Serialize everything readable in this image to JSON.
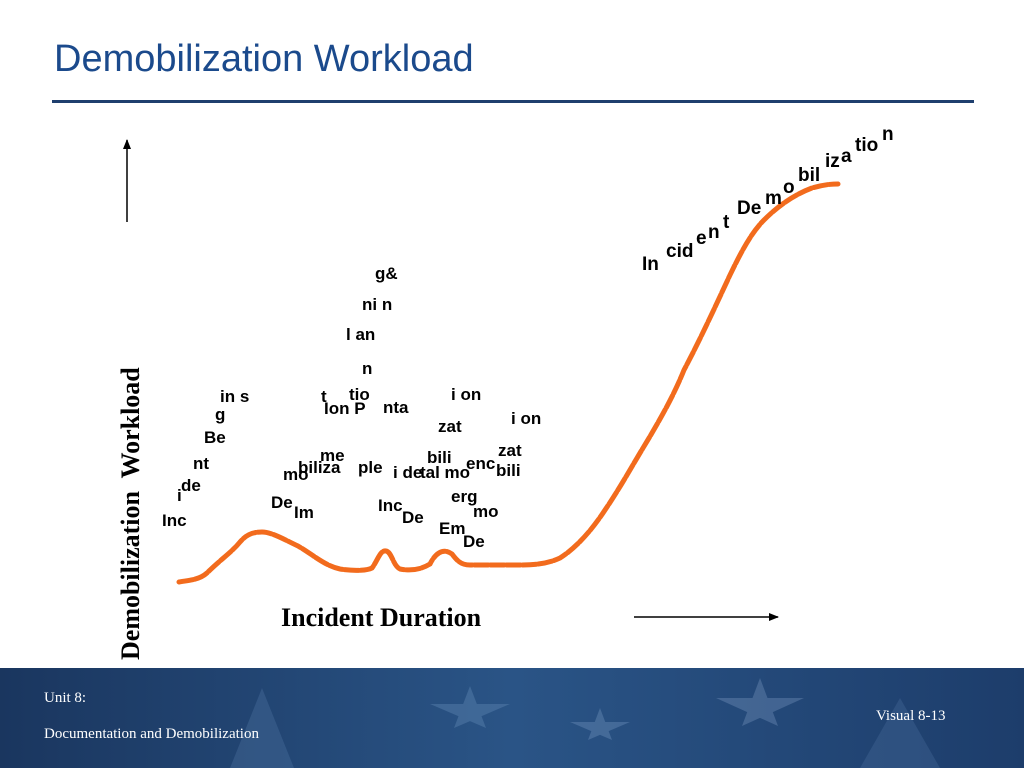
{
  "slide": {
    "title": "Demobilization Workload",
    "y_axis_label": "Demobilization  Workload",
    "x_axis_label": "Incident Duration"
  },
  "scattered_fragments": [
    "g&",
    "ni n",
    "l an",
    "n",
    "in s",
    "t",
    "tio",
    "i on",
    "g",
    "Ion P",
    "nta",
    "i on",
    "Be",
    "zat",
    "zat",
    "nt",
    "me",
    "bili",
    "enc",
    "mo",
    "biliza",
    "ple",
    "i de",
    "tal mo",
    "bili",
    "de",
    "i",
    "erg",
    "De",
    "Inc",
    "Im",
    "Inc",
    "De",
    "mo",
    "Em",
    "De"
  ],
  "curve_label_fragments": [
    "In",
    "cid",
    "e",
    "n",
    "t",
    "De",
    "m",
    "o",
    "bil",
    "iz",
    "a",
    "tio",
    "n"
  ],
  "footer": {
    "unit": "Unit 8:",
    "unit_title": "Documentation and Demobilization",
    "visual": "Visual 8-13"
  },
  "colors": {
    "title": "#1b4a8c",
    "curve": "#f26b1d",
    "footer_bg": "#1d3d6b"
  }
}
